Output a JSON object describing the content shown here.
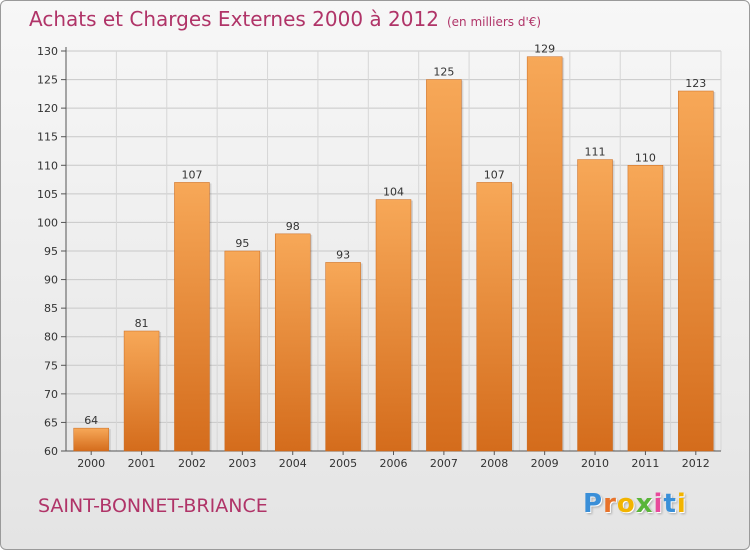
{
  "chart_data": {
    "type": "bar",
    "title": "Achats et Charges Externes 2000 à 2012",
    "subtitle": "(en milliers d'€)",
    "categories": [
      "2000",
      "2001",
      "2002",
      "2003",
      "2004",
      "2005",
      "2006",
      "2007",
      "2008",
      "2009",
      "2010",
      "2011",
      "2012"
    ],
    "values": [
      64,
      81,
      107,
      95,
      98,
      93,
      104,
      125,
      107,
      129,
      111,
      110,
      123
    ],
    "ylim": [
      60,
      130
    ],
    "yticks": [
      60,
      65,
      70,
      75,
      80,
      85,
      90,
      95,
      100,
      105,
      110,
      115,
      120,
      125,
      130
    ],
    "grid": true,
    "bar_color_top": "#f7a858",
    "bar_color_bottom": "#d46c1c"
  },
  "footer": {
    "commune": "SAINT-BONNET-BRIANCE"
  },
  "logo": {
    "letters": [
      "P",
      "r",
      "o",
      "x",
      "i",
      "t",
      "i"
    ],
    "colors": [
      "#3a8fd8",
      "#e8732a",
      "#f2b400",
      "#5ab53a",
      "#e84a9c",
      "#3a8fd8",
      "#f2b400"
    ]
  }
}
